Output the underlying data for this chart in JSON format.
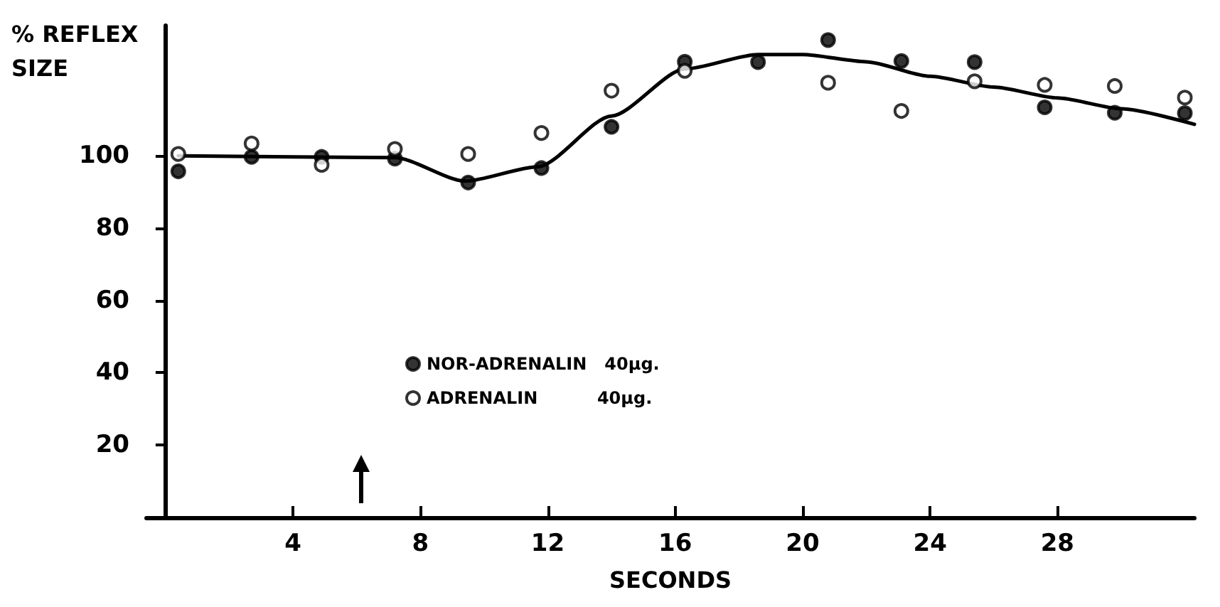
{
  "chart_data": {
    "type": "scatter",
    "ylabel": "% REFLEX\nSIZE",
    "xlabel": "SECONDS",
    "xlim": [
      -0.6,
      32.3
    ],
    "xticks": [
      4,
      8,
      12,
      16,
      20,
      24,
      28
    ],
    "ylim": [
      0,
      136
    ],
    "yticks": [
      20,
      40,
      60,
      80,
      100
    ],
    "grid": false,
    "legend": "center",
    "marker": "circle",
    "x": [
      0.4,
      2.7,
      4.9,
      7.2,
      9.5,
      11.8,
      14.0,
      16.3,
      18.6,
      20.8,
      23.1,
      25.4,
      27.6,
      29.8,
      32.0
    ],
    "series": [
      {
        "name": "NOR-ADRENALIN   40µg.",
        "color": "#000000",
        "values": [
          95.7,
          99.7,
          99.7,
          99.2,
          92.6,
          96.6,
          108,
          126,
          125.9,
          132,
          126.2,
          125.9,
          113.4,
          111.9,
          111.8
        ]
      },
      {
        "name": "ADRENALIN          40µg.",
        "color": "#ffffff",
        "values": [
          100.5,
          103.4,
          97.5,
          101.9,
          100.5,
          106.3,
          118,
          123.5,
          null,
          120.2,
          112.4,
          120.6,
          119.6,
          119.3,
          116.1
        ]
      },
      {
        "type": "line",
        "color": "#000000",
        "marker": "none",
        "line_style": "solid",
        "x": [
          0.4,
          7.2,
          9.4,
          11.7,
          14,
          16.3,
          18.6,
          20,
          22,
          24,
          26,
          28,
          30,
          32.3
        ],
        "values": [
          100,
          99.5,
          93,
          97,
          111,
          124,
          128,
          128,
          126,
          122,
          119,
          116,
          113,
          108.7
        ]
      }
    ]
  }
}
